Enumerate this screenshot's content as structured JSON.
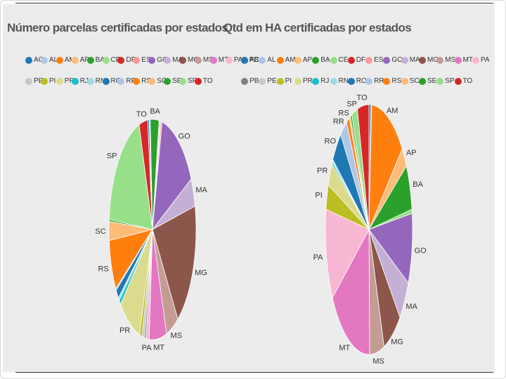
{
  "chart_data": [
    {
      "type": "pie",
      "title": "Número parcelas certificadas por estados",
      "legend": [
        "AC",
        "AL",
        "AM",
        "AP",
        "BA",
        "CE",
        "DF",
        "ES",
        "GO",
        "MA",
        "MG",
        "MS",
        "MT",
        "PA",
        "PB",
        "PE",
        "PI",
        "PR",
        "RJ",
        "RN",
        "RO",
        "RR",
        "RS",
        "SC",
        "SE",
        "SP",
        "TO"
      ],
      "slices": [
        {
          "label": "TO",
          "value": 3.5,
          "show": true
        },
        {
          "label": "AC",
          "value": 0.6,
          "show": false
        },
        {
          "label": "AL",
          "value": 0.4,
          "show": false
        },
        {
          "label": "BA",
          "value": 3.5,
          "show": true
        },
        {
          "label": "CE",
          "value": 0.4,
          "show": false
        },
        {
          "label": "DF",
          "value": 0.3,
          "show": false
        },
        {
          "label": "ES",
          "value": 0.5,
          "show": false
        },
        {
          "label": "GO",
          "value": 15.0,
          "show": true
        },
        {
          "label": "MA",
          "value": 4.5,
          "show": true
        },
        {
          "label": "MG",
          "value": 20.0,
          "show": true
        },
        {
          "label": "MS",
          "value": 5.0,
          "show": true
        },
        {
          "label": "MT",
          "value": 7.0,
          "show": true
        },
        {
          "label": "PA",
          "value": 1.2,
          "show": true
        },
        {
          "label": "PB",
          "value": 0.6,
          "show": false
        },
        {
          "label": "PE",
          "value": 1.0,
          "show": false
        },
        {
          "label": "PI",
          "value": 1.0,
          "show": false
        },
        {
          "label": "PR",
          "value": 9.0,
          "show": true
        },
        {
          "label": "RJ",
          "value": 0.8,
          "show": false
        },
        {
          "label": "RN",
          "value": 0.5,
          "show": false
        },
        {
          "label": "RO",
          "value": 1.5,
          "show": false
        },
        {
          "label": "RR",
          "value": 0.3,
          "show": false
        },
        {
          "label": "RS",
          "value": 8.0,
          "show": true
        },
        {
          "label": "SC",
          "value": 3.0,
          "show": true
        },
        {
          "label": "SE",
          "value": 0.3,
          "show": false
        },
        {
          "label": "SP",
          "value": 20.0,
          "show": true
        }
      ]
    },
    {
      "type": "pie",
      "title": "Qtd em HA certificadas por estados",
      "legend": [
        "AC",
        "AL",
        "AM",
        "AP",
        "BA",
        "CE",
        "DF",
        "ES",
        "GO",
        "MA",
        "MG",
        "MS",
        "MT",
        "PA",
        "PB",
        "PE",
        "PI",
        "PR",
        "RJ",
        "RN",
        "RO",
        "RR",
        "RS",
        "SC",
        "SE",
        "SP",
        "TO"
      ],
      "slices": [
        {
          "label": "AC",
          "value": 0.7,
          "show": false
        },
        {
          "label": "AL",
          "value": 0.2,
          "show": false
        },
        {
          "label": "AM",
          "value": 12.0,
          "show": true
        },
        {
          "label": "AP",
          "value": 2.5,
          "show": true
        },
        {
          "label": "BA",
          "value": 5.5,
          "show": true
        },
        {
          "label": "CE",
          "value": 0.5,
          "show": false
        },
        {
          "label": "GO",
          "value": 8.5,
          "show": true
        },
        {
          "label": "MA",
          "value": 5.0,
          "show": true
        },
        {
          "label": "MG",
          "value": 6.5,
          "show": true
        },
        {
          "label": "MS",
          "value": 5.0,
          "show": true
        },
        {
          "label": "MT",
          "value": 15.0,
          "show": true
        },
        {
          "label": "PA",
          "value": 11.0,
          "show": true
        },
        {
          "label": "PI",
          "value": 3.0,
          "show": true
        },
        {
          "label": "PR",
          "value": 2.8,
          "show": true
        },
        {
          "label": "RJ",
          "value": 0.3,
          "show": false
        },
        {
          "label": "RN",
          "value": 0.3,
          "show": false
        },
        {
          "label": "RO",
          "value": 4.0,
          "show": true
        },
        {
          "label": "RR",
          "value": 2.5,
          "show": true
        },
        {
          "label": "RS",
          "value": 1.0,
          "show": true
        },
        {
          "label": "SC",
          "value": 0.5,
          "show": false
        },
        {
          "label": "SE",
          "value": 0.5,
          "show": false
        },
        {
          "label": "SP",
          "value": 2.0,
          "show": true
        },
        {
          "label": "TO",
          "value": 4.0,
          "show": true
        }
      ]
    }
  ],
  "colors": {
    "AC": "#1f77b4",
    "AL": "#aec7e8",
    "AM": "#ff7f0e",
    "AP": "#ffbb78",
    "BA": "#2ca02c",
    "CE": "#98df8a",
    "DF": "#d62728",
    "ES": "#ff9896",
    "GO": "#9467bd",
    "MA": "#c5b0d5",
    "MG": "#8c564b",
    "MS": "#c49c94",
    "MT": "#e377c2",
    "PA": "#f7b6d2",
    "PB": "#7f7f7f",
    "PE": "#c7c7c7",
    "PI": "#bcbd22",
    "PR": "#dbdb8d",
    "RJ": "#17becf",
    "RN": "#9edae5",
    "RO": "#1f77b4",
    "RR": "#aec7e8",
    "RS": "#ff7f0e",
    "SC": "#ffbb78",
    "SE": "#2ca02c",
    "SP": "#98df8a",
    "TO": "#d62728"
  }
}
